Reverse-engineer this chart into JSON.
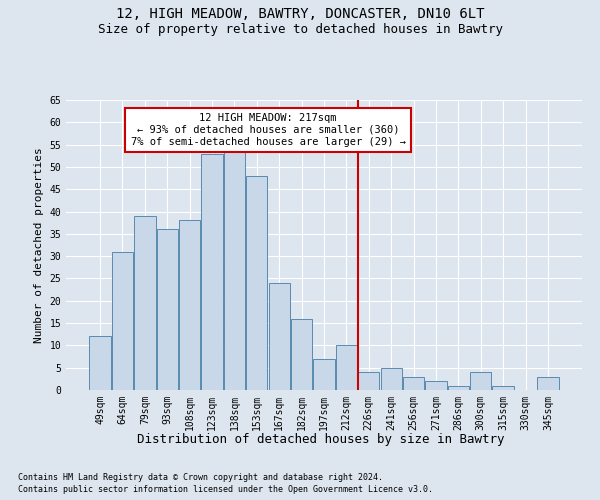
{
  "title1": "12, HIGH MEADOW, BAWTRY, DONCASTER, DN10 6LT",
  "title2": "Size of property relative to detached houses in Bawtry",
  "xlabel": "Distribution of detached houses by size in Bawtry",
  "ylabel": "Number of detached properties",
  "categories": [
    "49sqm",
    "64sqm",
    "79sqm",
    "93sqm",
    "108sqm",
    "123sqm",
    "138sqm",
    "153sqm",
    "167sqm",
    "182sqm",
    "197sqm",
    "212sqm",
    "226sqm",
    "241sqm",
    "256sqm",
    "271sqm",
    "286sqm",
    "300sqm",
    "315sqm",
    "330sqm",
    "345sqm"
  ],
  "values": [
    12,
    31,
    39,
    36,
    38,
    53,
    54,
    48,
    24,
    16,
    7,
    10,
    4,
    5,
    3,
    2,
    1,
    4,
    1,
    0,
    3
  ],
  "bar_color": "#c8d8e8",
  "bar_edge_color": "#5a8ab0",
  "vline_index": 11.5,
  "vline_color": "#cc0000",
  "annotation_text": "12 HIGH MEADOW: 217sqm\n← 93% of detached houses are smaller (360)\n7% of semi-detached houses are larger (29) →",
  "annotation_box_color": "#ffffff",
  "annotation_box_edge_color": "#cc0000",
  "ylim": [
    0,
    65
  ],
  "yticks": [
    0,
    5,
    10,
    15,
    20,
    25,
    30,
    35,
    40,
    45,
    50,
    55,
    60,
    65
  ],
  "bg_color": "#dde6ef",
  "plot_bg_color": "#dde6ef",
  "footer1": "Contains HM Land Registry data © Crown copyright and database right 2024.",
  "footer2": "Contains public sector information licensed under the Open Government Licence v3.0.",
  "title_fontsize": 10,
  "subtitle_fontsize": 9,
  "tick_fontsize": 7,
  "ylabel_fontsize": 8,
  "xlabel_fontsize": 9,
  "footer_fontsize": 6,
  "annot_fontsize": 7.5
}
